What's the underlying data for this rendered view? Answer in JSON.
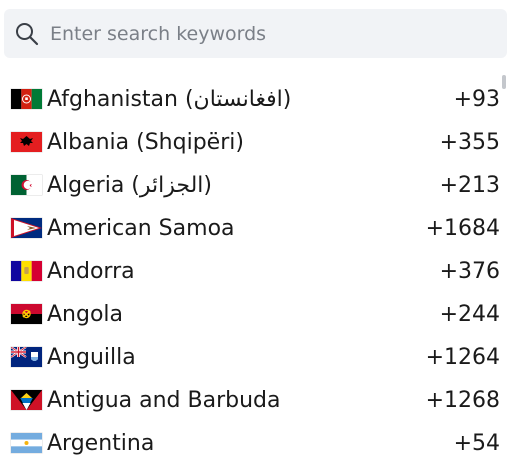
{
  "search": {
    "placeholder": "Enter search keywords",
    "value": "",
    "icon": "search-icon"
  },
  "countries": [
    {
      "name": "Afghanistan (افغانستان)",
      "code": "+93",
      "flag": "af"
    },
    {
      "name": "Albania (Shqipëri)",
      "code": "+355",
      "flag": "al"
    },
    {
      "name": "Algeria (الجزائر)",
      "code": "+213",
      "flag": "dz"
    },
    {
      "name": "American Samoa",
      "code": "+1684",
      "flag": "as"
    },
    {
      "name": "Andorra",
      "code": "+376",
      "flag": "ad"
    },
    {
      "name": "Angola",
      "code": "+244",
      "flag": "ao"
    },
    {
      "name": "Anguilla",
      "code": "+1264",
      "flag": "ai"
    },
    {
      "name": "Antigua and Barbuda",
      "code": "+1268",
      "flag": "ag"
    },
    {
      "name": "Argentina",
      "code": "+54",
      "flag": "ar"
    }
  ]
}
